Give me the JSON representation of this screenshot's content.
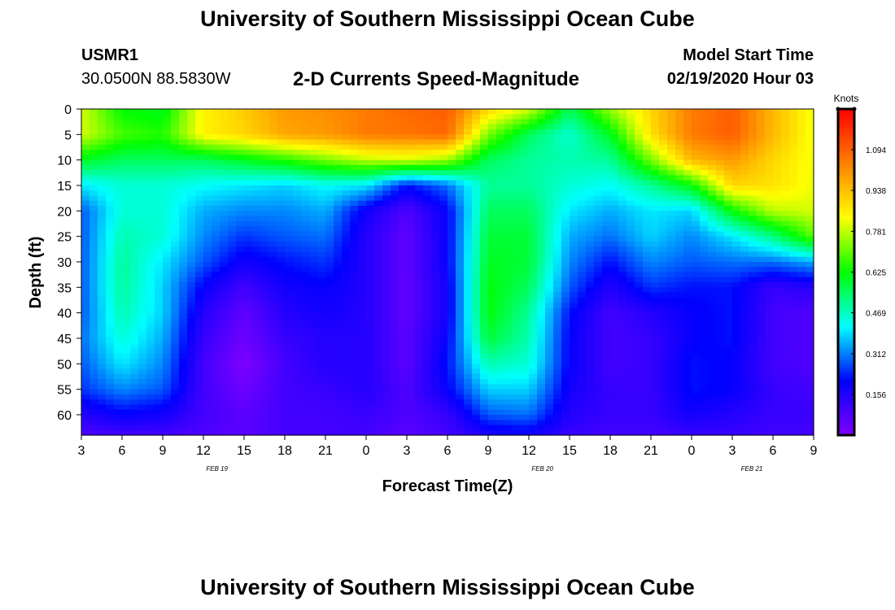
{
  "header": {
    "title": "University of Southern Mississippi Ocean Cube",
    "station": "USMR1",
    "coordinates": "30.0500N 88.5830W",
    "subtitle": "2-D Currents Speed-Magnitude",
    "model_start_label": "Model Start Time",
    "model_start_value": "02/19/2020 Hour 03"
  },
  "footer": {
    "title": "University of Southern Mississippi Ocean Cube"
  },
  "chart_data": {
    "type": "heatmap",
    "title": "2-D Currents Speed-Magnitude",
    "xlabel": "Forecast Time(Z)",
    "ylabel": "Depth (ft)",
    "x_start_hour": 3,
    "x_end_hour": 57,
    "x_tick_labels": [
      "3",
      "6",
      "9",
      "12",
      "15",
      "18",
      "21",
      "0",
      "3",
      "6",
      "9",
      "12",
      "15",
      "18",
      "21",
      "0",
      "3",
      "6",
      "9"
    ],
    "date_labels": [
      {
        "text": "FEB 19",
        "hour": 13
      },
      {
        "text": "FEB 20",
        "hour": 37
      },
      {
        "text": "FEB 21",
        "hour": 61
      }
    ],
    "ylim": [
      0,
      64
    ],
    "y_ticks": [
      0,
      5,
      10,
      15,
      20,
      25,
      30,
      35,
      40,
      45,
      50,
      55,
      60
    ],
    "colorbar": {
      "label": "Knots",
      "range": [
        0,
        1.25
      ],
      "tick_labels": [
        "1.094",
        "0.938",
        "0.781",
        "0.625",
        "0.469",
        "0.312",
        "0.156"
      ],
      "tick_values": [
        1.094,
        0.938,
        0.781,
        0.625,
        0.469,
        0.312,
        0.156
      ],
      "colors": [
        "#8000ff",
        "#0000ff",
        "#00ffff",
        "#00ff00",
        "#ffff00",
        "#ff8000",
        "#ff0000"
      ]
    },
    "depths": [
      0,
      5,
      10,
      15,
      20,
      25,
      30,
      35,
      40,
      45,
      50,
      55,
      60,
      64
    ],
    "times": [
      3,
      6,
      9,
      12,
      15,
      18,
      21,
      24,
      27,
      30,
      33,
      36,
      39,
      42,
      45,
      48,
      51,
      54,
      57
    ],
    "speeds": [
      [
        0.8,
        0.62,
        0.6,
        0.85,
        0.92,
        1.0,
        1.02,
        1.05,
        1.08,
        1.1,
        0.9,
        0.8,
        0.55,
        0.75,
        0.9,
        1.05,
        1.1,
        0.95,
        0.82
      ],
      [
        0.8,
        0.68,
        0.65,
        0.85,
        0.9,
        0.98,
        1.0,
        1.05,
        1.06,
        1.08,
        0.72,
        0.55,
        0.45,
        0.6,
        0.88,
        1.05,
        1.1,
        0.95,
        0.82
      ],
      [
        0.6,
        0.55,
        0.55,
        0.55,
        0.6,
        0.65,
        0.72,
        0.78,
        0.8,
        0.75,
        0.55,
        0.5,
        0.48,
        0.5,
        0.72,
        0.95,
        1.0,
        0.9,
        0.82
      ],
      [
        0.4,
        0.45,
        0.45,
        0.42,
        0.4,
        0.38,
        0.42,
        0.4,
        0.22,
        0.3,
        0.5,
        0.5,
        0.45,
        0.42,
        0.5,
        0.62,
        0.9,
        0.88,
        0.82
      ],
      [
        0.28,
        0.45,
        0.45,
        0.35,
        0.32,
        0.32,
        0.35,
        0.18,
        0.08,
        0.2,
        0.55,
        0.55,
        0.4,
        0.35,
        0.4,
        0.38,
        0.62,
        0.78,
        0.8
      ],
      [
        0.28,
        0.48,
        0.45,
        0.32,
        0.25,
        0.28,
        0.3,
        0.15,
        0.05,
        0.2,
        0.58,
        0.58,
        0.35,
        0.3,
        0.38,
        0.32,
        0.4,
        0.52,
        0.7
      ],
      [
        0.28,
        0.5,
        0.4,
        0.28,
        0.18,
        0.22,
        0.25,
        0.15,
        0.05,
        0.2,
        0.6,
        0.58,
        0.32,
        0.22,
        0.32,
        0.28,
        0.3,
        0.3,
        0.35
      ],
      [
        0.28,
        0.5,
        0.38,
        0.2,
        0.1,
        0.18,
        0.2,
        0.15,
        0.05,
        0.18,
        0.62,
        0.55,
        0.28,
        0.15,
        0.25,
        0.22,
        0.22,
        0.12,
        0.15
      ],
      [
        0.28,
        0.48,
        0.38,
        0.15,
        0.05,
        0.15,
        0.18,
        0.15,
        0.05,
        0.18,
        0.62,
        0.5,
        0.22,
        0.1,
        0.15,
        0.2,
        0.22,
        0.1,
        0.08
      ],
      [
        0.3,
        0.45,
        0.35,
        0.12,
        0.03,
        0.12,
        0.15,
        0.15,
        0.06,
        0.2,
        0.58,
        0.48,
        0.2,
        0.1,
        0.12,
        0.2,
        0.22,
        0.1,
        0.08
      ],
      [
        0.28,
        0.4,
        0.32,
        0.1,
        0.0,
        0.1,
        0.15,
        0.15,
        0.06,
        0.22,
        0.48,
        0.45,
        0.2,
        0.1,
        0.12,
        0.22,
        0.2,
        0.1,
        0.08
      ],
      [
        0.25,
        0.32,
        0.28,
        0.1,
        0.03,
        0.1,
        0.12,
        0.15,
        0.08,
        0.2,
        0.38,
        0.38,
        0.18,
        0.12,
        0.12,
        0.22,
        0.2,
        0.12,
        0.1
      ],
      [
        0.15,
        0.2,
        0.18,
        0.1,
        0.06,
        0.1,
        0.1,
        0.12,
        0.08,
        0.12,
        0.28,
        0.3,
        0.15,
        0.12,
        0.12,
        0.18,
        0.15,
        0.12,
        0.12
      ],
      [
        0.08,
        0.1,
        0.1,
        0.08,
        0.06,
        0.1,
        0.1,
        0.1,
        0.06,
        0.1,
        0.16,
        0.18,
        0.12,
        0.1,
        0.1,
        0.12,
        0.12,
        0.1,
        0.1
      ]
    ]
  }
}
